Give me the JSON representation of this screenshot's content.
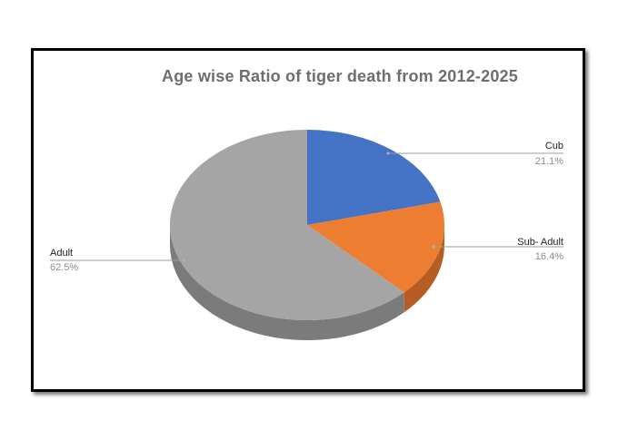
{
  "chart_data": {
    "type": "pie",
    "title": "Age wise Ratio of tiger death from 2012-2025",
    "slices": [
      {
        "label": "Cub",
        "percent_label": "21.1%",
        "value": 21.1,
        "color": "#4472c4",
        "side_color": "#2f5597"
      },
      {
        "label": "Sub- Adult",
        "percent_label": "16.4%",
        "value": 16.4,
        "color": "#ed7d31",
        "side_color": "#b55d22"
      },
      {
        "label": "Adult",
        "percent_label": "62.5%",
        "value": 62.5,
        "color": "#a5a5a5",
        "side_color": "#7b7b7b"
      }
    ]
  }
}
